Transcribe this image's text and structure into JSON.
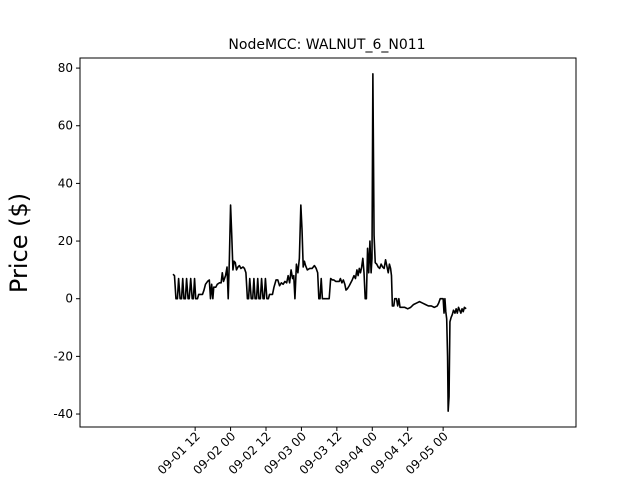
{
  "chart_data": {
    "type": "line",
    "title": "NodeMCC: WALNUT_6_N011",
    "ylabel": "Price ($)",
    "xlabel": "",
    "xlim": [
      -27,
      141
    ],
    "ylim": [
      -44.5,
      83.5
    ],
    "x_units": "hours after 09-01 00:00",
    "yticks": [
      -40,
      -20,
      0,
      20,
      40,
      60,
      80
    ],
    "xticks": [
      {
        "x": 12,
        "label": "09-01 12"
      },
      {
        "x": 24,
        "label": "09-02 00"
      },
      {
        "x": 36,
        "label": "09-02 12"
      },
      {
        "x": 48,
        "label": "09-03 00"
      },
      {
        "x": 60,
        "label": "09-03 12"
      },
      {
        "x": 72,
        "label": "09-04 00"
      },
      {
        "x": 84,
        "label": "09-04 12"
      },
      {
        "x": 96,
        "label": "09-05 00"
      }
    ],
    "grid": false,
    "line_color": "#000000",
    "series": [
      {
        "points": [
          [
            4.5,
            8.5
          ],
          [
            5.0,
            8.0
          ],
          [
            5.5,
            0.0
          ],
          [
            6.0,
            0.0
          ],
          [
            6.4,
            7.0
          ],
          [
            6.9,
            0.0
          ],
          [
            7.4,
            0.0
          ],
          [
            7.8,
            7.0
          ],
          [
            8.2,
            0.0
          ],
          [
            8.7,
            0.0
          ],
          [
            9.1,
            7.0
          ],
          [
            9.6,
            0.0
          ],
          [
            10.0,
            0.0
          ],
          [
            10.5,
            7.0
          ],
          [
            11.0,
            0.0
          ],
          [
            11.4,
            0.0
          ],
          [
            11.8,
            7.0
          ],
          [
            12.2,
            0.0
          ],
          [
            12.8,
            0.0
          ],
          [
            13.2,
            1.5
          ],
          [
            14.5,
            1.5
          ],
          [
            15.0,
            3.0
          ],
          [
            15.5,
            5.0
          ],
          [
            16.2,
            6.0
          ],
          [
            16.8,
            6.5
          ],
          [
            17.2,
            0.0
          ],
          [
            17.6,
            5.0
          ],
          [
            18.0,
            0.0
          ],
          [
            18.3,
            4.0
          ],
          [
            19.0,
            4.0
          ],
          [
            19.5,
            5.0
          ],
          [
            20.2,
            5.5
          ],
          [
            20.8,
            5.5
          ],
          [
            21.2,
            9.0
          ],
          [
            21.6,
            6.0
          ],
          [
            22.3,
            8.0
          ],
          [
            22.8,
            11.0
          ],
          [
            23.2,
            0.0
          ],
          [
            23.6,
            14.0
          ],
          [
            24.0,
            32.5
          ],
          [
            24.4,
            22.0
          ],
          [
            24.8,
            10.0
          ],
          [
            25.2,
            13.0
          ],
          [
            25.6,
            12.5
          ],
          [
            26.0,
            10.0
          ],
          [
            26.5,
            11.0
          ],
          [
            27.0,
            11.5
          ],
          [
            27.5,
            10.5
          ],
          [
            28.2,
            11.0
          ],
          [
            28.7,
            10.5
          ],
          [
            29.2,
            9.0
          ],
          [
            29.7,
            0.0
          ],
          [
            30.1,
            0.0
          ],
          [
            30.5,
            7.0
          ],
          [
            31.0,
            0.0
          ],
          [
            31.5,
            0.0
          ],
          [
            31.9,
            7.0
          ],
          [
            32.3,
            0.0
          ],
          [
            32.8,
            0.0
          ],
          [
            33.2,
            7.0
          ],
          [
            33.6,
            0.0
          ],
          [
            34.1,
            0.0
          ],
          [
            34.5,
            7.0
          ],
          [
            35.0,
            0.0
          ],
          [
            35.4,
            0.0
          ],
          [
            35.8,
            7.0
          ],
          [
            36.3,
            0.0
          ],
          [
            36.8,
            0.0
          ],
          [
            37.2,
            1.5
          ],
          [
            38.2,
            1.5
          ],
          [
            38.7,
            4.0
          ],
          [
            39.4,
            6.5
          ],
          [
            40.0,
            6.5
          ],
          [
            40.6,
            4.5
          ],
          [
            41.2,
            5.5
          ],
          [
            41.8,
            5.0
          ],
          [
            42.4,
            6.0
          ],
          [
            43.0,
            5.5
          ],
          [
            43.5,
            8.0
          ],
          [
            44.0,
            5.5
          ],
          [
            44.5,
            10.0
          ],
          [
            45.0,
            7.0
          ],
          [
            45.4,
            8.0
          ],
          [
            45.8,
            0.0
          ],
          [
            46.3,
            12.0
          ],
          [
            46.8,
            9.0
          ],
          [
            47.3,
            14.0
          ],
          [
            47.8,
            32.5
          ],
          [
            48.2,
            24.0
          ],
          [
            48.6,
            11.0
          ],
          [
            49.0,
            13.0
          ],
          [
            49.4,
            11.5
          ],
          [
            50.0,
            10.0
          ],
          [
            50.8,
            10.5
          ],
          [
            51.6,
            10.5
          ],
          [
            52.4,
            11.5
          ],
          [
            53.0,
            10.5
          ],
          [
            53.5,
            9.0
          ],
          [
            53.9,
            0.0
          ],
          [
            54.3,
            0.0
          ],
          [
            54.7,
            7.0
          ],
          [
            55.1,
            0.0
          ],
          [
            55.6,
            0.0
          ],
          [
            56.0,
            0.0
          ],
          [
            56.5,
            0.0
          ],
          [
            57.0,
            0.0
          ],
          [
            57.4,
            0.0
          ],
          [
            57.9,
            7.0
          ],
          [
            58.5,
            6.5
          ],
          [
            59.0,
            6.5
          ],
          [
            59.6,
            6.0
          ],
          [
            60.2,
            6.0
          ],
          [
            60.8,
            6.0
          ],
          [
            61.2,
            7.0
          ],
          [
            61.7,
            5.5
          ],
          [
            62.2,
            6.5
          ],
          [
            62.7,
            5.0
          ],
          [
            63.1,
            3.0
          ],
          [
            63.6,
            3.5
          ],
          [
            64.2,
            4.5
          ],
          [
            64.7,
            5.5
          ],
          [
            65.2,
            6.5
          ],
          [
            65.8,
            8.0
          ],
          [
            66.3,
            7.0
          ],
          [
            66.8,
            10.0
          ],
          [
            67.2,
            8.0
          ],
          [
            67.6,
            10.5
          ],
          [
            68.0,
            9.0
          ],
          [
            68.4,
            11.0
          ],
          [
            68.8,
            14.0
          ],
          [
            69.2,
            9.0
          ],
          [
            69.6,
            0.0
          ],
          [
            70.0,
            0.0
          ],
          [
            70.4,
            17.5
          ],
          [
            70.8,
            9.0
          ],
          [
            71.2,
            20.0
          ],
          [
            71.6,
            9.0
          ],
          [
            71.9,
            14.0
          ],
          [
            72.2,
            78.0
          ],
          [
            72.6,
            22.0
          ],
          [
            73.0,
            12.5
          ],
          [
            73.5,
            12.0
          ],
          [
            74.0,
            11.0
          ],
          [
            74.5,
            10.5
          ],
          [
            75.0,
            12.0
          ],
          [
            75.5,
            11.0
          ],
          [
            76.0,
            10.5
          ],
          [
            76.5,
            13.5
          ],
          [
            77.0,
            11.0
          ],
          [
            77.4,
            9.0
          ],
          [
            77.8,
            12.0
          ],
          [
            78.2,
            10.5
          ],
          [
            78.5,
            8.0
          ],
          [
            78.8,
            -2.5
          ],
          [
            79.3,
            -2.5
          ],
          [
            79.6,
            0.0
          ],
          [
            80.2,
            0.0
          ],
          [
            80.6,
            -2.5
          ],
          [
            81.0,
            0.0
          ],
          [
            81.4,
            -3.0
          ],
          [
            83.0,
            -3.0
          ],
          [
            84.0,
            -3.5
          ],
          [
            85.0,
            -3.0
          ],
          [
            86.0,
            -2.0
          ],
          [
            87.0,
            -1.5
          ],
          [
            88.0,
            -1.0
          ],
          [
            89.0,
            -1.5
          ],
          [
            90.0,
            -2.0
          ],
          [
            91.0,
            -2.5
          ],
          [
            92.0,
            -2.5
          ],
          [
            93.0,
            -3.0
          ],
          [
            94.0,
            -2.5
          ],
          [
            94.5,
            -1.5
          ],
          [
            95.0,
            0.0
          ],
          [
            96.0,
            0.0
          ],
          [
            96.3,
            -5.0
          ],
          [
            96.6,
            0.0
          ],
          [
            96.9,
            -4.5
          ],
          [
            97.2,
            -7.0
          ],
          [
            97.5,
            -20.0
          ],
          [
            97.7,
            -39.0
          ],
          [
            98.0,
            -34.0
          ],
          [
            98.3,
            -8.0
          ],
          [
            98.7,
            -6.5
          ],
          [
            99.1,
            -5.5
          ],
          [
            99.5,
            -4.0
          ],
          [
            100.0,
            -5.0
          ],
          [
            100.4,
            -3.5
          ],
          [
            100.8,
            -5.0
          ],
          [
            101.2,
            -3.0
          ],
          [
            101.6,
            -4.0
          ],
          [
            102.0,
            -5.0
          ],
          [
            102.4,
            -3.5
          ],
          [
            102.8,
            -4.5
          ],
          [
            103.2,
            -3.0
          ],
          [
            103.8,
            -3.5
          ]
        ]
      }
    ]
  }
}
